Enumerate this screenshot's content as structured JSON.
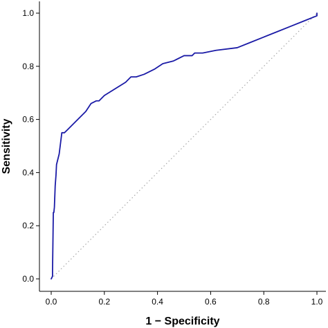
{
  "chart_data": {
    "type": "line",
    "xlabel": "1 − Specificity",
    "ylabel": "Sensitivity",
    "xlim": [
      0,
      1
    ],
    "ylim": [
      0,
      1
    ],
    "xticks": [
      "0.0",
      "0.2",
      "0.4",
      "0.6",
      "0.8",
      "1.0"
    ],
    "yticks": [
      "0.0",
      "0.2",
      "0.4",
      "0.6",
      "0.8",
      "1.0"
    ],
    "grid": false,
    "reference_line": {
      "style": "dotted",
      "from": [
        0,
        0
      ],
      "to": [
        1,
        1
      ]
    },
    "colors": {
      "curve": "#1a1aa6",
      "reference": "#a8a8a8",
      "axis": "#000000"
    },
    "series": [
      {
        "x": [
          0.0,
          0.005,
          0.005,
          0.008,
          0.01,
          0.012,
          0.015,
          0.018,
          0.02,
          0.03,
          0.04,
          0.05,
          0.06,
          0.1,
          0.13,
          0.15,
          0.17,
          0.18,
          0.2,
          0.28,
          0.3,
          0.32,
          0.35,
          0.39,
          0.42,
          0.46,
          0.5,
          0.53,
          0.54,
          0.57,
          0.62,
          0.7,
          0.75,
          0.8,
          0.85,
          0.9,
          0.95,
          1.0,
          1.0
        ],
        "y": [
          0.0,
          0.01,
          0.03,
          0.25,
          0.25,
          0.27,
          0.35,
          0.39,
          0.43,
          0.47,
          0.55,
          0.55,
          0.56,
          0.6,
          0.63,
          0.66,
          0.67,
          0.67,
          0.69,
          0.74,
          0.76,
          0.76,
          0.77,
          0.79,
          0.81,
          0.82,
          0.84,
          0.84,
          0.85,
          0.85,
          0.86,
          0.87,
          0.89,
          0.91,
          0.93,
          0.95,
          0.97,
          0.99,
          1.0
        ]
      }
    ]
  }
}
